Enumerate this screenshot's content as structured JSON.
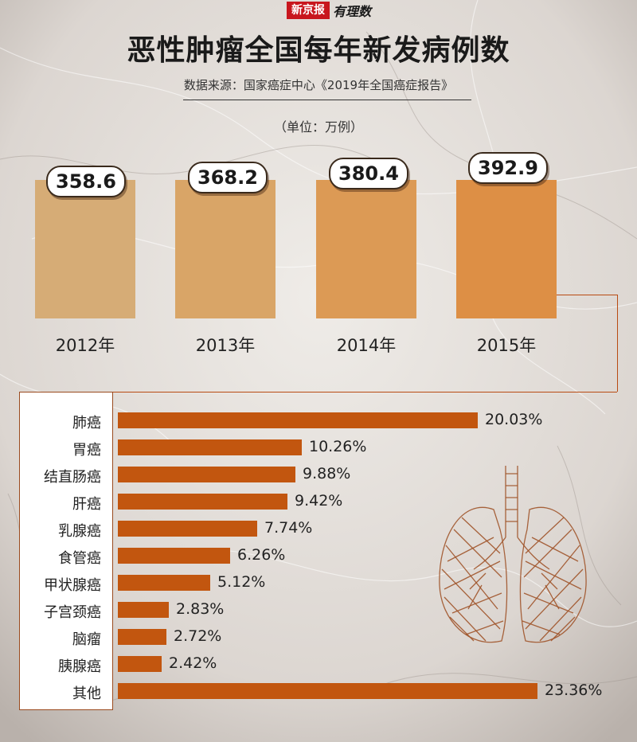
{
  "header": {
    "logo_text": "新京报",
    "logo_script": "有理数",
    "title": "恶性肿瘤全国每年新发病例数",
    "source": "数据来源：国家癌症中心《2019年全国癌症报告》",
    "unit": "（单位：万例）"
  },
  "colors": {
    "bar_2012": "#d6ac76",
    "bar_2013": "#d9a567",
    "bar_2014": "#dc9a55",
    "bar_2015": "#dd8f45",
    "hbar": "#c2560f",
    "accent_line": "#b84a12"
  },
  "icons": {
    "decoration": "lungs-sketch-icon"
  },
  "chart_data": [
    {
      "type": "bar",
      "title": "恶性肿瘤全国每年新发病例数",
      "subtitle": "数据来源：国家癌症中心《2019年全国癌症报告》",
      "ylabel": "（单位：万例）",
      "categories": [
        "2012年",
        "2013年",
        "2014年",
        "2015年"
      ],
      "values": [
        358.6,
        368.2,
        380.4,
        392.9
      ],
      "value_labels": [
        "358.6",
        "368.2",
        "380.4",
        "392.9"
      ]
    },
    {
      "type": "bar",
      "orientation": "horizontal",
      "categories": [
        "肺癌",
        "胃癌",
        "结直肠癌",
        "肝癌",
        "乳腺癌",
        "食管癌",
        "甲状腺癌",
        "子宫颈癌",
        "脑瘤",
        "胰腺癌",
        "其他"
      ],
      "values": [
        20.03,
        10.26,
        9.88,
        9.42,
        7.74,
        6.26,
        5.12,
        2.83,
        2.72,
        2.42,
        23.36
      ],
      "value_labels": [
        "20.03%",
        "10.26%",
        "9.88%",
        "9.42%",
        "7.74%",
        "6.26%",
        "5.12%",
        "2.83%",
        "2.72%",
        "2.42%",
        "23.36%"
      ]
    }
  ]
}
